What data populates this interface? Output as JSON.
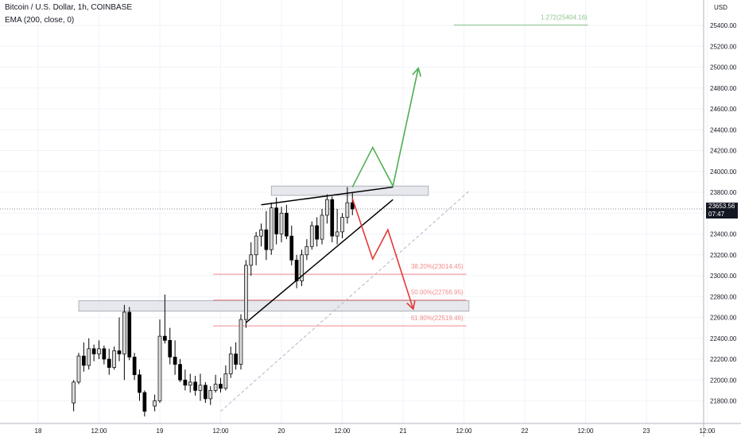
{
  "header": {
    "symbol_line": "Bitcoin / U.S. Dollar, 1h, COINBASE",
    "indicator_line": "EMA (200, close, 0)"
  },
  "price_tag": {
    "price": "23653.56",
    "countdown": "07:47"
  },
  "colors": {
    "bull": "#d9d9d9",
    "bear": "#000000",
    "up_path": "#4caf50",
    "down_path": "#e53935",
    "fib_level": "#f28b8b",
    "fib_ext": "#8bc58b",
    "zone": "#e6e8ee",
    "zone_border": "#9598a1",
    "trendline": "#000000",
    "dashed_line": "#b2b5be"
  },
  "chart_data": {
    "type": "candlestick",
    "xlabel": "",
    "ylabel": "USD",
    "y_tick_labels": [
      "25400.00",
      "25200.00",
      "25000.00",
      "24800.00",
      "24600.00",
      "24400.00",
      "24200.00",
      "24000.00",
      "23800.00",
      "23600.00",
      "23400.00",
      "23200.00",
      "23000.00",
      "22800.00",
      "22600.00",
      "22400.00",
      "22200.00",
      "22000.00",
      "21800.00"
    ],
    "y_ticks": [
      25400,
      25200,
      25000,
      24800,
      24600,
      24400,
      24200,
      24000,
      23800,
      23600,
      23400,
      23200,
      23000,
      22800,
      22600,
      22400,
      22200,
      22000,
      21800
    ],
    "ylim": [
      21700,
      25550
    ],
    "x_tick_labels": [
      "18",
      "12:00",
      "19",
      "12:00",
      "20",
      "12:00",
      "21",
      "12:00",
      "22",
      "12:00",
      "23",
      "12:00"
    ],
    "x_ticks_hours": [
      0,
      12,
      24,
      36,
      48,
      60,
      72,
      84,
      96,
      108,
      120,
      132
    ],
    "candles": [
      {
        "t": 7,
        "o": 21780,
        "h": 22000,
        "l": 21700,
        "c": 21980
      },
      {
        "t": 8,
        "o": 21980,
        "h": 22260,
        "l": 21960,
        "c": 22230
      },
      {
        "t": 9,
        "o": 22230,
        "h": 22360,
        "l": 22080,
        "c": 22140
      },
      {
        "t": 10,
        "o": 22140,
        "h": 22400,
        "l": 22100,
        "c": 22300
      },
      {
        "t": 11,
        "o": 22300,
        "h": 22340,
        "l": 22180,
        "c": 22250
      },
      {
        "t": 12,
        "o": 22250,
        "h": 22380,
        "l": 22200,
        "c": 22300
      },
      {
        "t": 13,
        "o": 22300,
        "h": 22330,
        "l": 22150,
        "c": 22200
      },
      {
        "t": 14,
        "o": 22200,
        "h": 22300,
        "l": 22050,
        "c": 22120
      },
      {
        "t": 15,
        "o": 22120,
        "h": 22320,
        "l": 22100,
        "c": 22280
      },
      {
        "t": 16,
        "o": 22280,
        "h": 22600,
        "l": 22180,
        "c": 22250
      },
      {
        "t": 17,
        "o": 22250,
        "h": 22720,
        "l": 22000,
        "c": 22650
      },
      {
        "t": 18,
        "o": 22650,
        "h": 22700,
        "l": 22190,
        "c": 22220
      },
      {
        "t": 19,
        "o": 22220,
        "h": 22260,
        "l": 22000,
        "c": 22050
      },
      {
        "t": 20,
        "o": 22050,
        "h": 22100,
        "l": 21800,
        "c": 21880
      },
      {
        "t": 21,
        "o": 21880,
        "h": 21900,
        "l": 21650,
        "c": 21700
      },
      {
        "t": 23,
        "o": 21750,
        "h": 21860,
        "l": 21700,
        "c": 21800
      },
      {
        "t": 24,
        "o": 21800,
        "h": 22580,
        "l": 21780,
        "c": 22420
      },
      {
        "t": 25,
        "o": 22420,
        "h": 22820,
        "l": 22350,
        "c": 22380
      },
      {
        "t": 26,
        "o": 22380,
        "h": 22500,
        "l": 22150,
        "c": 22220
      },
      {
        "t": 27,
        "o": 22220,
        "h": 22380,
        "l": 22050,
        "c": 22150
      },
      {
        "t": 28,
        "o": 22150,
        "h": 22200,
        "l": 21980,
        "c": 22000
      },
      {
        "t": 29,
        "o": 22000,
        "h": 22100,
        "l": 21900,
        "c": 21950
      },
      {
        "t": 30,
        "o": 21950,
        "h": 22060,
        "l": 21880,
        "c": 21980
      },
      {
        "t": 31,
        "o": 21980,
        "h": 22040,
        "l": 21850,
        "c": 21900
      },
      {
        "t": 32,
        "o": 21900,
        "h": 22060,
        "l": 21800,
        "c": 21950
      },
      {
        "t": 33,
        "o": 21950,
        "h": 21980,
        "l": 21780,
        "c": 21820
      },
      {
        "t": 34,
        "o": 21820,
        "h": 21940,
        "l": 21760,
        "c": 21900
      },
      {
        "t": 35,
        "o": 21900,
        "h": 22050,
        "l": 21880,
        "c": 21960
      },
      {
        "t": 36,
        "o": 21960,
        "h": 22020,
        "l": 21880,
        "c": 21920
      },
      {
        "t": 37,
        "o": 21920,
        "h": 22140,
        "l": 21900,
        "c": 22060
      },
      {
        "t": 38,
        "o": 22060,
        "h": 22320,
        "l": 22020,
        "c": 22250
      },
      {
        "t": 39,
        "o": 22250,
        "h": 22360,
        "l": 22100,
        "c": 22150
      },
      {
        "t": 40,
        "o": 22150,
        "h": 22630,
        "l": 22100,
        "c": 22580
      },
      {
        "t": 41,
        "o": 22580,
        "h": 23150,
        "l": 22500,
        "c": 23100
      },
      {
        "t": 42,
        "o": 23100,
        "h": 23320,
        "l": 23000,
        "c": 23200
      },
      {
        "t": 43,
        "o": 23200,
        "h": 23420,
        "l": 23100,
        "c": 23380
      },
      {
        "t": 44,
        "o": 23380,
        "h": 23500,
        "l": 23280,
        "c": 23440
      },
      {
        "t": 45,
        "o": 23440,
        "h": 23620,
        "l": 23150,
        "c": 23250
      },
      {
        "t": 46,
        "o": 23250,
        "h": 23700,
        "l": 23200,
        "c": 23650
      },
      {
        "t": 47,
        "o": 23650,
        "h": 23750,
        "l": 23300,
        "c": 23400
      },
      {
        "t": 48,
        "o": 23400,
        "h": 23660,
        "l": 23320,
        "c": 23600
      },
      {
        "t": 49,
        "o": 23600,
        "h": 23680,
        "l": 23350,
        "c": 23380
      },
      {
        "t": 50,
        "o": 23380,
        "h": 23480,
        "l": 23100,
        "c": 23150
      },
      {
        "t": 51,
        "o": 23150,
        "h": 23200,
        "l": 22880,
        "c": 22950
      },
      {
        "t": 52,
        "o": 22950,
        "h": 23250,
        "l": 22900,
        "c": 23200
      },
      {
        "t": 53,
        "o": 23200,
        "h": 23350,
        "l": 23150,
        "c": 23280
      },
      {
        "t": 54,
        "o": 23280,
        "h": 23520,
        "l": 23250,
        "c": 23480
      },
      {
        "t": 55,
        "o": 23480,
        "h": 23560,
        "l": 23280,
        "c": 23350
      },
      {
        "t": 56,
        "o": 23350,
        "h": 23640,
        "l": 23300,
        "c": 23580
      },
      {
        "t": 57,
        "o": 23580,
        "h": 23780,
        "l": 23500,
        "c": 23730
      },
      {
        "t": 58,
        "o": 23730,
        "h": 23760,
        "l": 23320,
        "c": 23380
      },
      {
        "t": 59,
        "o": 23380,
        "h": 23640,
        "l": 23300,
        "c": 23420
      },
      {
        "t": 60,
        "o": 23420,
        "h": 23600,
        "l": 23360,
        "c": 23560
      },
      {
        "t": 61,
        "o": 23560,
        "h": 23850,
        "l": 23500,
        "c": 23700
      },
      {
        "t": 62,
        "o": 23700,
        "h": 23800,
        "l": 23580,
        "c": 23640
      }
    ],
    "support_zones": [
      {
        "from_hour": 46,
        "to_hour": 77,
        "top": 23860,
        "bottom": 23770
      },
      {
        "from_hour": 8,
        "to_hour": 85,
        "top": 22760,
        "bottom": 22660
      }
    ],
    "fibonacci": [
      {
        "label": "38.20%(23014.45)",
        "price": 23014.45
      },
      {
        "label": "50.00%(22766.95)",
        "price": 22766.95
      },
      {
        "label": "61.80%(22519.46)",
        "price": 22519.46
      }
    ],
    "fib_extension": {
      "label": "1.272(25404.16)",
      "price": 25404.16
    },
    "trendlines": [
      {
        "x1": 44,
        "y1": 23680,
        "x2": 70,
        "y2": 23850
      },
      {
        "x1": 41,
        "y1": 22550,
        "x2": 70,
        "y2": 23730
      }
    ],
    "dashed_trendline": {
      "x1": 36,
      "y1": 21700,
      "x2": 85,
      "y2": 23810
    },
    "bull_path": [
      [
        62,
        23850
      ],
      [
        66,
        24230
      ],
      [
        70,
        23860
      ],
      [
        75,
        24990
      ]
    ],
    "bear_path": [
      [
        62,
        23740
      ],
      [
        66,
        23160
      ],
      [
        69,
        23440
      ],
      [
        74,
        22680
      ]
    ]
  }
}
